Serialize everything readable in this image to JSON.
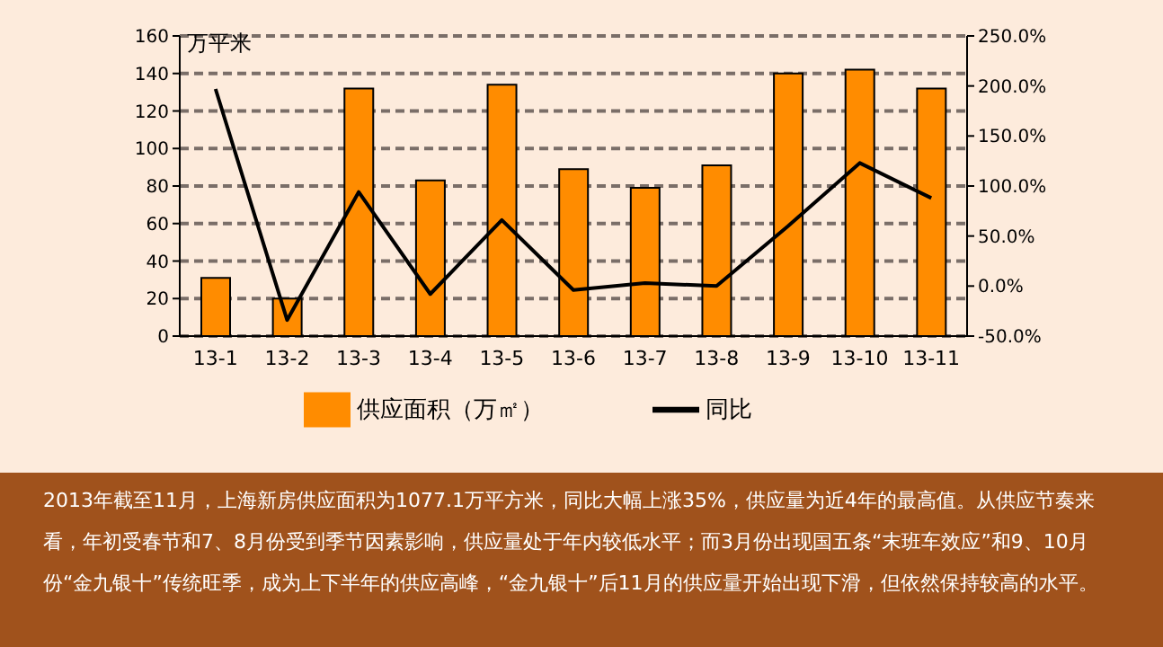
{
  "chart_data": {
    "type": "bar",
    "ylabel": "万平米",
    "categories": [
      "13-1",
      "13-2",
      "13-3",
      "13-4",
      "13-5",
      "13-6",
      "13-7",
      "13-8",
      "13-9",
      "13-10",
      "13-11"
    ],
    "series": [
      {
        "name": "供应面积（万㎡）",
        "color": "#ff8c00",
        "values": [
          31,
          20,
          132,
          83,
          134,
          89,
          79,
          91,
          140,
          142,
          132
        ]
      },
      {
        "name": "同比",
        "type": "line",
        "axis": "y2",
        "color": "#000000",
        "values": [
          197,
          -34,
          94,
          -8,
          66,
          -4,
          3,
          0,
          60,
          123,
          88
        ]
      }
    ],
    "ylim": [
      0,
      160
    ],
    "yticks": [
      0,
      20,
      40,
      60,
      80,
      100,
      120,
      140,
      160
    ],
    "y2lim": [
      -50,
      250
    ],
    "y2ticks": [
      {
        "value": -50,
        "label": "-50.0%"
      },
      {
        "value": 0,
        "label": "0.0%"
      },
      {
        "value": 50,
        "label": "50.0%"
      },
      {
        "value": 100,
        "label": "100.0%"
      },
      {
        "value": 150,
        "label": "150.0%"
      },
      {
        "value": 200,
        "label": "200.0%"
      },
      {
        "value": 250,
        "label": "250.0%"
      }
    ],
    "grid": "y",
    "legend": "bottom",
    "marker": "none",
    "line_style": "solid",
    "annotations": [
      "2013年截至11月，上海新房供应面积为1077.1万平方米，同比大幅上涨35%，供应量为近4年的最高值。从供应节奏来看，年初受春节和7、8月份受到季节因素影响，供应量处于年内较低水平；而3月份出现国五条“末班车效应”和9、10月份“金九银十”传统旺季，成为上下半年的供应高峰，“金九银十”后11月的供应量开始出现下滑，但依然保持较高的水平。"
    ]
  }
}
